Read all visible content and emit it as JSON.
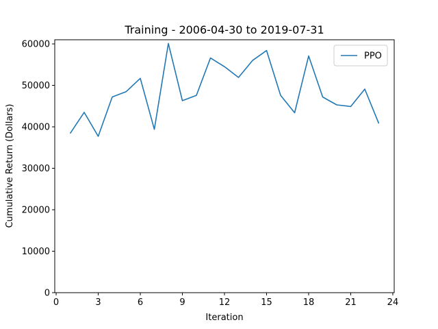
{
  "chart_data": {
    "type": "line",
    "title": "Training - 2006-04-30 to 2019-07-31",
    "xlabel": "Iteration",
    "ylabel": "Cumulative Return (Dollars)",
    "xlim": [
      -0.1,
      24.1
    ],
    "ylim": [
      0,
      61000
    ],
    "xticks": [
      0,
      3,
      6,
      9,
      12,
      15,
      18,
      21,
      24
    ],
    "yticks": [
      0,
      10000,
      20000,
      30000,
      40000,
      50000,
      60000
    ],
    "grid": false,
    "legend_position": "top-right",
    "series": [
      {
        "name": "PPO",
        "color": "#1f77b4",
        "x": [
          1,
          2,
          3,
          4,
          5,
          6,
          7,
          8,
          9,
          10,
          11,
          12,
          13,
          14,
          15,
          16,
          17,
          18,
          19,
          20,
          21,
          22,
          23
        ],
        "values": [
          38400,
          43500,
          37700,
          47200,
          48500,
          51700,
          39400,
          60100,
          46300,
          47600,
          56600,
          54500,
          51900,
          56000,
          58400,
          47600,
          43400,
          57100,
          47200,
          45300,
          44900,
          49100,
          40800
        ]
      }
    ]
  }
}
